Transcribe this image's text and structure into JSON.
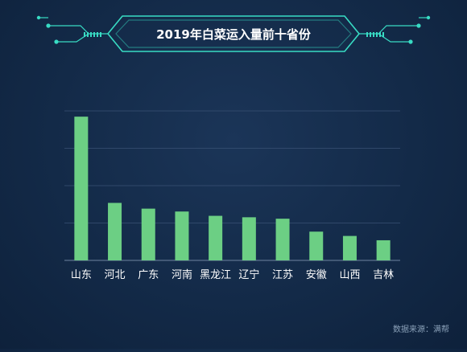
{
  "chart_data": {
    "type": "bar",
    "title": "2019年白菜运入量前十省份",
    "categories": [
      "山东",
      "河北",
      "广东",
      "河南",
      "黑龙江",
      "辽宁",
      "江苏",
      "安徽",
      "山西",
      "吉林"
    ],
    "values": [
      100,
      40,
      36,
      34,
      31,
      30,
      29,
      20,
      17,
      14
    ],
    "ylim": [
      0,
      104
    ],
    "grid": true,
    "bar_color": "#6ccf84",
    "frame_color": "#38dcc4"
  },
  "source": "数据来源：满帮"
}
